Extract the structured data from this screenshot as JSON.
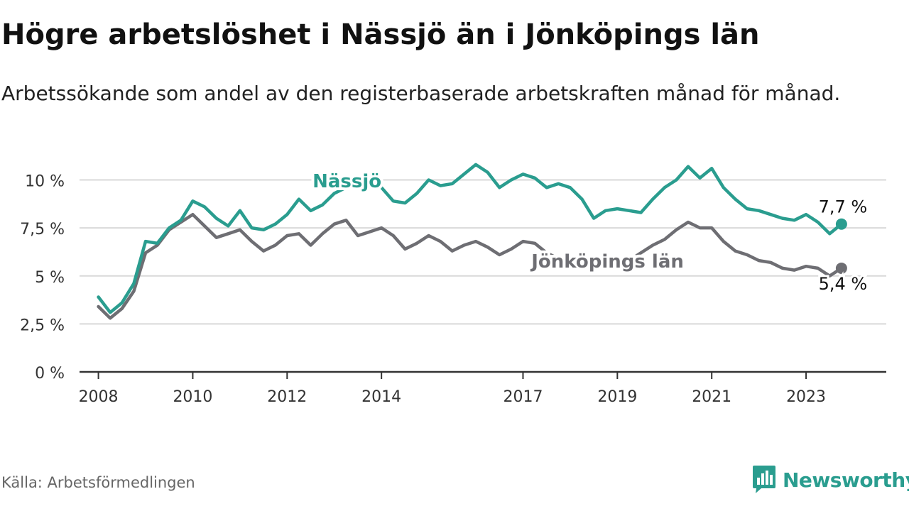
{
  "title": "Högre arbetslöshet i Nässjö än i Jönköpings län",
  "subtitle": "Arbetssökande som andel av den registerbaserade arbetskraften månad för månad.",
  "source": "Källa: Arbetsförmedlingen",
  "brand": {
    "name": "Newsworthy",
    "icon": "bar-chart-icon",
    "color": "#2a9d8f"
  },
  "chart_data": {
    "type": "line",
    "title": "Högre arbetslöshet i Nässjö än i Jönköpings län",
    "xlabel": "",
    "ylabel": "",
    "xlim": [
      2007.6,
      2024.7
    ],
    "ylim": [
      0,
      10.5
    ],
    "grid": true,
    "y_ticks": [
      {
        "value": 0,
        "label": "0 %"
      },
      {
        "value": 2.5,
        "label": "2,5 %"
      },
      {
        "value": 5,
        "label": "5 %"
      },
      {
        "value": 7.5,
        "label": "7,5 %"
      },
      {
        "value": 10,
        "label": "10 %"
      }
    ],
    "x_ticks": [
      {
        "value": 2008,
        "label": "2008"
      },
      {
        "value": 2010,
        "label": "2010"
      },
      {
        "value": 2012,
        "label": "2012"
      },
      {
        "value": 2014,
        "label": "2014"
      },
      {
        "value": 2017,
        "label": "2017"
      },
      {
        "value": 2019,
        "label": "2019"
      },
      {
        "value": 2021,
        "label": "2021"
      },
      {
        "value": 2023,
        "label": "2023"
      }
    ],
    "series": [
      {
        "name": "Nässjö",
        "color": "#2a9d8f",
        "end_label": "7,7 %",
        "x": [
          2008.0,
          2008.25,
          2008.5,
          2008.75,
          2009.0,
          2009.25,
          2009.5,
          2009.75,
          2010.0,
          2010.25,
          2010.5,
          2010.75,
          2011.0,
          2011.25,
          2011.5,
          2011.75,
          2012.0,
          2012.25,
          2012.5,
          2012.75,
          2013.0,
          2013.25,
          2013.5,
          2013.75,
          2014.0,
          2014.25,
          2014.5,
          2014.75,
          2015.0,
          2015.25,
          2015.5,
          2015.75,
          2016.0,
          2016.25,
          2016.5,
          2016.75,
          2017.0,
          2017.25,
          2017.5,
          2017.75,
          2018.0,
          2018.25,
          2018.5,
          2018.75,
          2019.0,
          2019.25,
          2019.5,
          2019.75,
          2020.0,
          2020.25,
          2020.5,
          2020.75,
          2021.0,
          2021.25,
          2021.5,
          2021.75,
          2022.0,
          2022.25,
          2022.5,
          2022.75,
          2023.0,
          2023.25,
          2023.5,
          2023.75
        ],
        "values": [
          3.9,
          3.1,
          3.6,
          4.6,
          6.8,
          6.7,
          7.5,
          7.9,
          8.9,
          8.6,
          8.0,
          7.6,
          8.4,
          7.5,
          7.4,
          7.7,
          8.2,
          9.0,
          8.4,
          8.7,
          9.3,
          9.6,
          9.7,
          9.9,
          9.6,
          8.9,
          8.8,
          9.3,
          10.0,
          9.7,
          9.8,
          10.3,
          10.8,
          10.4,
          9.6,
          10.0,
          10.3,
          10.1,
          9.6,
          9.8,
          9.6,
          9.0,
          8.0,
          8.4,
          8.5,
          8.4,
          8.3,
          9.0,
          9.6,
          10.0,
          10.7,
          10.1,
          10.6,
          9.6,
          9.0,
          8.5,
          8.4,
          8.2,
          8.0,
          7.9,
          8.2,
          7.8,
          7.2,
          7.7
        ]
      },
      {
        "name": "Jönköpings län",
        "color": "#6e6e73",
        "end_label": "5,4 %",
        "x": [
          2008.0,
          2008.25,
          2008.5,
          2008.75,
          2009.0,
          2009.25,
          2009.5,
          2009.75,
          2010.0,
          2010.25,
          2010.5,
          2010.75,
          2011.0,
          2011.25,
          2011.5,
          2011.75,
          2012.0,
          2012.25,
          2012.5,
          2012.75,
          2013.0,
          2013.25,
          2013.5,
          2013.75,
          2014.0,
          2014.25,
          2014.5,
          2014.75,
          2015.0,
          2015.25,
          2015.5,
          2015.75,
          2016.0,
          2016.25,
          2016.5,
          2016.75,
          2017.0,
          2017.25,
          2017.5,
          2017.75,
          2018.0,
          2018.25,
          2018.5,
          2018.75,
          2019.0,
          2019.25,
          2019.5,
          2019.75,
          2020.0,
          2020.25,
          2020.5,
          2020.75,
          2021.0,
          2021.25,
          2021.5,
          2021.75,
          2022.0,
          2022.25,
          2022.5,
          2022.75,
          2023.0,
          2023.25,
          2023.5,
          2023.75
        ],
        "values": [
          3.4,
          2.8,
          3.3,
          4.2,
          6.2,
          6.6,
          7.4,
          7.8,
          8.2,
          7.6,
          7.0,
          7.2,
          7.4,
          6.8,
          6.3,
          6.6,
          7.1,
          7.2,
          6.6,
          7.2,
          7.7,
          7.9,
          7.1,
          7.3,
          7.5,
          7.1,
          6.4,
          6.7,
          7.1,
          6.8,
          6.3,
          6.6,
          6.8,
          6.5,
          6.1,
          6.4,
          6.8,
          6.7,
          6.2,
          5.9,
          6.0,
          5.8,
          5.6,
          5.8,
          5.9,
          5.8,
          6.2,
          6.6,
          6.9,
          7.4,
          7.8,
          7.5,
          7.5,
          6.8,
          6.3,
          6.1,
          5.8,
          5.7,
          5.4,
          5.3,
          5.5,
          5.4,
          5.0,
          5.4
        ]
      }
    ],
    "annotations": [
      {
        "text": "Nässjö",
        "series": "Nässjö",
        "x": 2014.0,
        "y": 9.8
      },
      {
        "text": "Jönköpings län",
        "series": "Jönköpings län",
        "x": 2018.0,
        "y": 5.8
      }
    ]
  }
}
